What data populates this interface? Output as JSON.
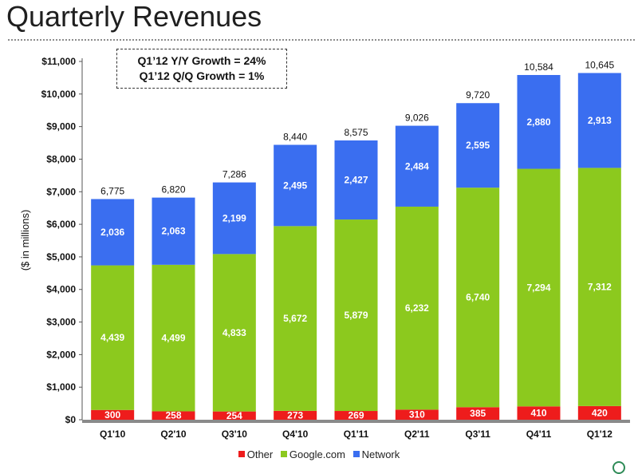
{
  "page_title": "Quarterly Revenues",
  "callout": {
    "line1": "Q1’12 Y/Y Growth = 24%",
    "line2": "Q1’12 Q/Q Growth = 1%"
  },
  "legend": [
    {
      "name": "Other",
      "color": "#ee1c1c"
    },
    {
      "name": "Google.com",
      "color": "#8cc91e"
    },
    {
      "name": "Network",
      "color": "#3a6ef0"
    }
  ],
  "chart_data": {
    "type": "bar",
    "stacked": true,
    "title": "Quarterly Revenues",
    "ylabel": "($ in millions)",
    "xlabel": "",
    "ylim": [
      0,
      11000
    ],
    "yticks": [
      "$0",
      "$1,000",
      "$2,000",
      "$3,000",
      "$4,000",
      "$5,000",
      "$6,000",
      "$7,000",
      "$8,000",
      "$9,000",
      "$10,000",
      "$11,000"
    ],
    "categories": [
      "Q1'10",
      "Q2'10",
      "Q3'10",
      "Q4'10",
      "Q1'11",
      "Q2'11",
      "Q3'11",
      "Q4'11",
      "Q1'12"
    ],
    "series": [
      {
        "name": "Other",
        "color": "#ee1c1c",
        "values": [
          300,
          258,
          254,
          273,
          269,
          310,
          385,
          410,
          420
        ],
        "labels": [
          "300",
          "258",
          "254",
          "273",
          "269",
          "310",
          "385",
          "410",
          "420"
        ]
      },
      {
        "name": "Google.com",
        "color": "#8cc91e",
        "values": [
          4439,
          4499,
          4833,
          5672,
          5879,
          6232,
          6740,
          7294,
          7312
        ],
        "labels": [
          "4,439",
          "4,499",
          "4,833",
          "5,672",
          "5,879",
          "6,232",
          "6,740",
          "7,294",
          "7,312"
        ]
      },
      {
        "name": "Network",
        "color": "#3a6ef0",
        "values": [
          2036,
          2063,
          2199,
          2495,
          2427,
          2484,
          2595,
          2880,
          2913
        ],
        "labels": [
          "2,036",
          "2,063",
          "2,199",
          "2,495",
          "2,427",
          "2,484",
          "2,595",
          "2,880",
          "2,913"
        ]
      }
    ],
    "totals": [
      6775,
      6820,
      7286,
      8440,
      8575,
      9026,
      9720,
      10584,
      10645
    ],
    "total_labels": [
      "6,775",
      "6,820",
      "7,286",
      "8,440",
      "8,575",
      "9,026",
      "9,720",
      "10,584",
      "10,645"
    ],
    "legend_position": "bottom",
    "grid": false
  }
}
